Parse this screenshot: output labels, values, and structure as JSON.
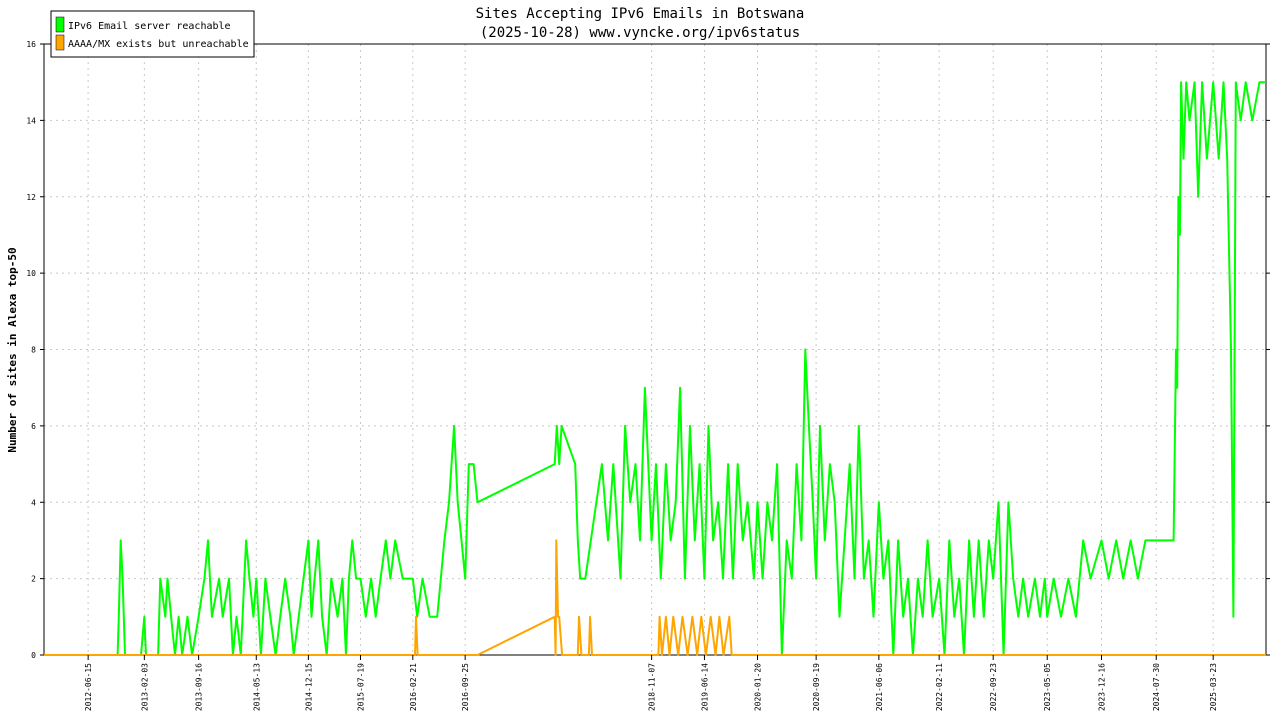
{
  "chart_data": {
    "type": "line",
    "title": "Sites Accepting IPv6 Emails in Botswana",
    "subtitle": "(2025-10-28) www.vyncke.org/ipv6status",
    "ylabel": "Number of sites in Alexa top-50",
    "xlabel": "",
    "ylim": [
      0,
      16
    ],
    "yticks": [
      "0",
      "2",
      "4",
      "6",
      "8",
      "10",
      "12",
      "14",
      "16"
    ],
    "xlim": [
      "2011-12-15",
      "2025-10-28"
    ],
    "xticks": [
      "2012-06-15",
      "2013-02-03",
      "2013-09-16",
      "2014-05-13",
      "2014-12-15",
      "2015-07-19",
      "2016-02-21",
      "2016-09-25",
      "2018-11-07",
      "2019-06-14",
      "2020-01-20",
      "2020-09-19",
      "2021-06-06",
      "2022-02-11",
      "2022-09-23",
      "2023-05-05",
      "2023-12-16",
      "2024-07-30",
      "2025-03-23"
    ],
    "grid": true,
    "legend_position": "top-left",
    "series": [
      {
        "name": "IPv6 Email server reachable",
        "color": "#00ff00",
        "points": [
          [
            "2011-12-15",
            0
          ],
          [
            "2012-10-15",
            0
          ],
          [
            "2012-10-20",
            1
          ],
          [
            "2012-10-28",
            3
          ],
          [
            "2012-11-05",
            2
          ],
          [
            "2012-11-15",
            0
          ],
          [
            "2013-01-20",
            0
          ],
          [
            "2013-02-03",
            1
          ],
          [
            "2013-02-10",
            0
          ],
          [
            "2013-04-01",
            0
          ],
          [
            "2013-04-10",
            2
          ],
          [
            "2013-05-01",
            1
          ],
          [
            "2013-05-10",
            2
          ],
          [
            "2013-05-25",
            1
          ],
          [
            "2013-06-10",
            0
          ],
          [
            "2013-06-25",
            1
          ],
          [
            "2013-07-10",
            0
          ],
          [
            "2013-08-01",
            1
          ],
          [
            "2013-08-20",
            0
          ],
          [
            "2013-09-16",
            1
          ],
          [
            "2013-10-10",
            2
          ],
          [
            "2013-10-25",
            3
          ],
          [
            "2013-11-10",
            1
          ],
          [
            "2013-12-10",
            2
          ],
          [
            "2013-12-25",
            1
          ],
          [
            "2014-01-20",
            2
          ],
          [
            "2014-02-05",
            0
          ],
          [
            "2014-02-20",
            1
          ],
          [
            "2014-03-10",
            0
          ],
          [
            "2014-04-01",
            3
          ],
          [
            "2014-04-15",
            2
          ],
          [
            "2014-05-01",
            1
          ],
          [
            "2014-05-13",
            2
          ],
          [
            "2014-06-01",
            0
          ],
          [
            "2014-06-20",
            2
          ],
          [
            "2014-07-10",
            1
          ],
          [
            "2014-08-01",
            0
          ],
          [
            "2014-08-20",
            1
          ],
          [
            "2014-09-10",
            2
          ],
          [
            "2014-10-01",
            1
          ],
          [
            "2014-10-15",
            0
          ],
          [
            "2014-11-05",
            1
          ],
          [
            "2014-11-25",
            2
          ],
          [
            "2014-12-15",
            3
          ],
          [
            "2014-12-28",
            1
          ],
          [
            "2015-01-10",
            2
          ],
          [
            "2015-01-25",
            3
          ],
          [
            "2015-02-10",
            1
          ],
          [
            "2015-03-01",
            0
          ],
          [
            "2015-03-20",
            2
          ],
          [
            "2015-04-15",
            1
          ],
          [
            "2015-05-05",
            2
          ],
          [
            "2015-05-20",
            0
          ],
          [
            "2015-06-01",
            2
          ],
          [
            "2015-06-15",
            3
          ],
          [
            "2015-07-01",
            2
          ],
          [
            "2015-07-19",
            2
          ],
          [
            "2015-08-10",
            1
          ],
          [
            "2015-09-01",
            2
          ],
          [
            "2015-09-20",
            1
          ],
          [
            "2015-10-10",
            2
          ],
          [
            "2015-11-01",
            3
          ],
          [
            "2015-11-20",
            2
          ],
          [
            "2015-12-10",
            3
          ],
          [
            "2016-01-10",
            2
          ],
          [
            "2016-02-21",
            2
          ],
          [
            "2016-03-10",
            1
          ],
          [
            "2016-04-01",
            2
          ],
          [
            "2016-05-01",
            1
          ],
          [
            "2016-06-01",
            1
          ],
          [
            "2016-07-01",
            3
          ],
          [
            "2016-07-20",
            4
          ],
          [
            "2016-08-10",
            6
          ],
          [
            "2016-08-25",
            4
          ],
          [
            "2016-09-10",
            3
          ],
          [
            "2016-09-25",
            2
          ],
          [
            "2016-10-10",
            5
          ],
          [
            "2016-10-30",
            5
          ],
          [
            "2016-11-15",
            4
          ],
          [
            "2017-10-01",
            5
          ],
          [
            "2017-10-10",
            6
          ],
          [
            "2017-10-20",
            5
          ],
          [
            "2017-10-30",
            6
          ],
          [
            "2017-12-25",
            5
          ],
          [
            "2018-01-05",
            3
          ],
          [
            "2018-01-15",
            2
          ],
          [
            "2018-02-05",
            2
          ],
          [
            "2018-04-15",
            5
          ],
          [
            "2018-05-10",
            3
          ],
          [
            "2018-06-01",
            5
          ],
          [
            "2018-07-01",
            2
          ],
          [
            "2018-07-20",
            6
          ],
          [
            "2018-08-10",
            4
          ],
          [
            "2018-09-01",
            5
          ],
          [
            "2018-09-20",
            3
          ],
          [
            "2018-10-10",
            7
          ],
          [
            "2018-11-07",
            3
          ],
          [
            "2018-11-25",
            5
          ],
          [
            "2018-12-15",
            2
          ],
          [
            "2019-01-05",
            5
          ],
          [
            "2019-01-25",
            3
          ],
          [
            "2019-02-15",
            4
          ],
          [
            "2019-03-05",
            7
          ],
          [
            "2019-03-25",
            2
          ],
          [
            "2019-04-15",
            6
          ],
          [
            "2019-05-05",
            3
          ],
          [
            "2019-05-25",
            5
          ],
          [
            "2019-06-14",
            2
          ],
          [
            "2019-07-01",
            6
          ],
          [
            "2019-07-20",
            3
          ],
          [
            "2019-08-10",
            4
          ],
          [
            "2019-08-30",
            2
          ],
          [
            "2019-09-20",
            5
          ],
          [
            "2019-10-10",
            2
          ],
          [
            "2019-10-30",
            5
          ],
          [
            "2019-11-20",
            3
          ],
          [
            "2019-12-10",
            4
          ],
          [
            "2020-01-05",
            2
          ],
          [
            "2020-01-20",
            4
          ],
          [
            "2020-02-10",
            2
          ],
          [
            "2020-03-01",
            4
          ],
          [
            "2020-03-20",
            3
          ],
          [
            "2020-04-10",
            5
          ],
          [
            "2020-04-30",
            0
          ],
          [
            "2020-05-20",
            3
          ],
          [
            "2020-06-10",
            2
          ],
          [
            "2020-06-30",
            5
          ],
          [
            "2020-07-20",
            3
          ],
          [
            "2020-08-05",
            8
          ],
          [
            "2020-08-20",
            6
          ],
          [
            "2020-09-05",
            4
          ],
          [
            "2020-09-19",
            2
          ],
          [
            "2020-10-05",
            6
          ],
          [
            "2020-10-25",
            3
          ],
          [
            "2020-11-15",
            5
          ],
          [
            "2020-12-05",
            4
          ],
          [
            "2020-12-25",
            1
          ],
          [
            "2021-01-15",
            3
          ],
          [
            "2021-02-05",
            5
          ],
          [
            "2021-02-25",
            2
          ],
          [
            "2021-03-15",
            6
          ],
          [
            "2021-04-05",
            2
          ],
          [
            "2021-04-25",
            3
          ],
          [
            "2021-05-15",
            1
          ],
          [
            "2021-06-06",
            4
          ],
          [
            "2021-06-25",
            2
          ],
          [
            "2021-07-15",
            3
          ],
          [
            "2021-08-05",
            0
          ],
          [
            "2021-08-25",
            3
          ],
          [
            "2021-09-15",
            1
          ],
          [
            "2021-10-05",
            2
          ],
          [
            "2021-10-25",
            0
          ],
          [
            "2021-11-15",
            2
          ],
          [
            "2021-12-05",
            1
          ],
          [
            "2021-12-25",
            3
          ],
          [
            "2022-01-15",
            1
          ],
          [
            "2022-02-11",
            2
          ],
          [
            "2022-03-05",
            0
          ],
          [
            "2022-03-25",
            3
          ],
          [
            "2022-04-15",
            1
          ],
          [
            "2022-05-05",
            2
          ],
          [
            "2022-05-25",
            0
          ],
          [
            "2022-06-15",
            3
          ],
          [
            "2022-07-05",
            1
          ],
          [
            "2022-07-25",
            3
          ],
          [
            "2022-08-15",
            1
          ],
          [
            "2022-09-05",
            3
          ],
          [
            "2022-09-23",
            2
          ],
          [
            "2022-10-15",
            4
          ],
          [
            "2022-11-05",
            0
          ],
          [
            "2022-11-25",
            4
          ],
          [
            "2022-12-15",
            2
          ],
          [
            "2023-01-05",
            1
          ],
          [
            "2023-01-25",
            2
          ],
          [
            "2023-02-15",
            1
          ],
          [
            "2023-03-15",
            2
          ],
          [
            "2023-04-05",
            1
          ],
          [
            "2023-04-25",
            2
          ],
          [
            "2023-05-05",
            1
          ],
          [
            "2023-06-01",
            2
          ],
          [
            "2023-07-01",
            1
          ],
          [
            "2023-08-01",
            2
          ],
          [
            "2023-09-01",
            1
          ],
          [
            "2023-10-01",
            3
          ],
          [
            "2023-11-01",
            2
          ],
          [
            "2023-12-16",
            3
          ],
          [
            "2024-01-15",
            2
          ],
          [
            "2024-02-15",
            3
          ],
          [
            "2024-03-15",
            2
          ],
          [
            "2024-04-15",
            3
          ],
          [
            "2024-05-15",
            2
          ],
          [
            "2024-06-15",
            3
          ],
          [
            "2024-07-30",
            3
          ],
          [
            "2024-09-15",
            3
          ],
          [
            "2024-10-10",
            3
          ],
          [
            "2024-10-20",
            8
          ],
          [
            "2024-10-25",
            7
          ],
          [
            "2024-10-30",
            12
          ],
          [
            "2024-11-05",
            11
          ],
          [
            "2024-11-10",
            15
          ],
          [
            "2024-11-20",
            13
          ],
          [
            "2024-12-01",
            15
          ],
          [
            "2024-12-15",
            14
          ],
          [
            "2025-01-05",
            15
          ],
          [
            "2025-01-20",
            12
          ],
          [
            "2025-02-05",
            15
          ],
          [
            "2025-02-25",
            13
          ],
          [
            "2025-03-23",
            15
          ],
          [
            "2025-04-15",
            13
          ],
          [
            "2025-05-05",
            15
          ],
          [
            "2025-05-20",
            13
          ],
          [
            "2025-06-05",
            8
          ],
          [
            "2025-06-15",
            1
          ],
          [
            "2025-06-25",
            15
          ],
          [
            "2025-07-15",
            14
          ],
          [
            "2025-08-05",
            15
          ],
          [
            "2025-09-01",
            14
          ],
          [
            "2025-10-01",
            15
          ],
          [
            "2025-10-28",
            15
          ]
        ]
      },
      {
        "name": "AAAA/MX exists but unreachable",
        "color": "#ffa500",
        "points": [
          [
            "2011-12-15",
            0
          ],
          [
            "2016-03-01",
            0
          ],
          [
            "2016-03-05",
            1
          ],
          [
            "2016-03-12",
            0
          ],
          [
            "2016-11-15",
            0
          ],
          [
            "2017-10-01",
            1
          ],
          [
            "2017-10-05",
            0
          ],
          [
            "2017-10-08",
            3
          ],
          [
            "2017-10-15",
            1
          ],
          [
            "2017-10-20",
            1
          ],
          [
            "2017-11-01",
            0
          ],
          [
            "2018-01-05",
            0
          ],
          [
            "2018-01-10",
            1
          ],
          [
            "2018-01-20",
            0
          ],
          [
            "2018-02-20",
            0
          ],
          [
            "2018-02-25",
            1
          ],
          [
            "2018-03-05",
            0
          ],
          [
            "2018-12-05",
            0
          ],
          [
            "2018-12-10",
            1
          ],
          [
            "2018-12-20",
            0
          ],
          [
            "2019-01-05",
            1
          ],
          [
            "2019-01-20",
            0
          ],
          [
            "2019-02-05",
            1
          ],
          [
            "2019-02-25",
            0
          ],
          [
            "2019-03-15",
            1
          ],
          [
            "2019-04-05",
            0
          ],
          [
            "2019-04-25",
            1
          ],
          [
            "2019-05-15",
            0
          ],
          [
            "2019-06-01",
            1
          ],
          [
            "2019-06-20",
            0
          ],
          [
            "2019-07-10",
            1
          ],
          [
            "2019-07-30",
            0
          ],
          [
            "2019-08-15",
            1
          ],
          [
            "2019-09-01",
            0
          ],
          [
            "2019-09-25",
            1
          ],
          [
            "2019-10-05",
            0
          ],
          [
            "2025-10-28",
            0
          ]
        ]
      }
    ]
  }
}
